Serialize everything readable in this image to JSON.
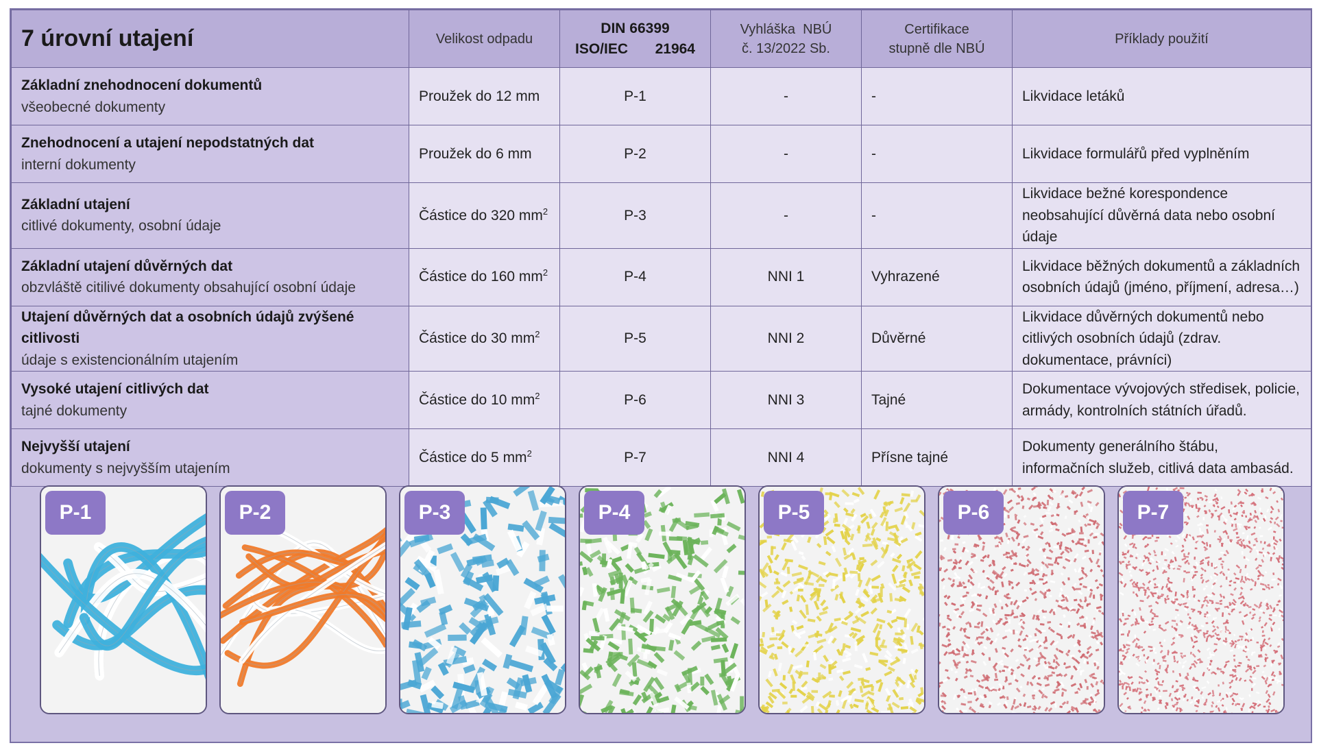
{
  "table": {
    "title": "7 úrovní utajení",
    "headers": {
      "size": "Velikost odpadu",
      "din_line1": "DIN 66399",
      "din_line2a": "ISO/IEC",
      "din_line2b": "21964",
      "nbu_line1": "Vyhláška  NBÚ",
      "nbu_line2": "č. 13/2022 Sb.",
      "cert_line1": "Certifikace",
      "cert_line2": "stupně dle NBÚ",
      "examples": "Příklady použití"
    },
    "rows": [
      {
        "name": "Základní znehodnocení dokumentů",
        "desc": "všeobecné dokumenty",
        "size": "Proužek do 12 mm",
        "unit_sup": "",
        "din": "P-1",
        "nbu": "-",
        "cert": "-",
        "examples": "Likvidace letáků"
      },
      {
        "name": "Znehodnocení a utajení nepodstatných dat",
        "desc": "interní dokumenty",
        "size": "Proužek do 6 mm",
        "unit_sup": "",
        "din": "P-2",
        "nbu": "-",
        "cert": "-",
        "examples": "Likvidace formulářů před vyplněním"
      },
      {
        "name": "Základní utajení",
        "desc": "citlivé dokumenty, osobní údaje",
        "size": "Částice do 320 mm",
        "unit_sup": "2",
        "din": "P-3",
        "nbu": "-",
        "cert": "-",
        "examples": "Likvidace bežné korespondence neobsahující důvěrná data nebo osobní údaje"
      },
      {
        "name": "Základní utajení důvěrných dat",
        "desc": "obzvláště citilivé dokumenty obsahující osobní údaje",
        "size": "Částice do 160 mm",
        "unit_sup": "2",
        "din": "P-4",
        "nbu": "NNI 1",
        "cert": "Vyhrazené",
        "examples": "Likvidace běžných dokumentů a základních osobních údajů (jméno, příjmení, adresa…)"
      },
      {
        "name": "Utajení důvěrných dat a osobních údajů zvýšené citlivosti",
        "desc": "údaje s existencionálním utajením",
        "size": "Částice do 30 mm",
        "unit_sup": "2",
        "din": "P-5",
        "nbu": "NNI 2",
        "cert": "Důvěrné",
        "examples": "Likvidace důvěrných dokumentů nebo citlivých osobních údajů (zdrav. dokumentace, právníci)"
      },
      {
        "name": "Vysoké utajení citlivých dat",
        "desc": "tajné dokumenty",
        "size": "Částice do 10 mm",
        "unit_sup": "2",
        "din": "P-6",
        "nbu": "NNI 3",
        "cert": "Tajné",
        "examples": "Dokumentace vývojových středisek, policie, armády, kontrolních státních úřadů."
      },
      {
        "name": "Nejvyšší utajení",
        "desc": "dokumenty s nejvyšším utajením",
        "size": "Částice do 5 mm",
        "unit_sup": "2",
        "din": "P-7",
        "nbu": "NNI 4",
        "cert": "Přísne tajné",
        "examples": "Dokumenty generálního štábu, informačních služeb, citlivá data ambasád."
      }
    ]
  },
  "cards": [
    {
      "label": "P-1",
      "color": "#3fb1dc",
      "kind": "strips-wide"
    },
    {
      "label": "P-2",
      "color": "#f07a2a",
      "kind": "strips-narrow"
    },
    {
      "label": "P-3",
      "color": "#4aa6d4",
      "kind": "particles-large"
    },
    {
      "label": "P-4",
      "color": "#6bb35a",
      "kind": "particles-medium"
    },
    {
      "label": "P-5",
      "color": "#e3d24a",
      "kind": "particles-small"
    },
    {
      "label": "P-6",
      "color": "#cf6b72",
      "kind": "particles-tiny"
    },
    {
      "label": "P-7",
      "color": "#d46e78",
      "kind": "particles-micro"
    }
  ]
}
